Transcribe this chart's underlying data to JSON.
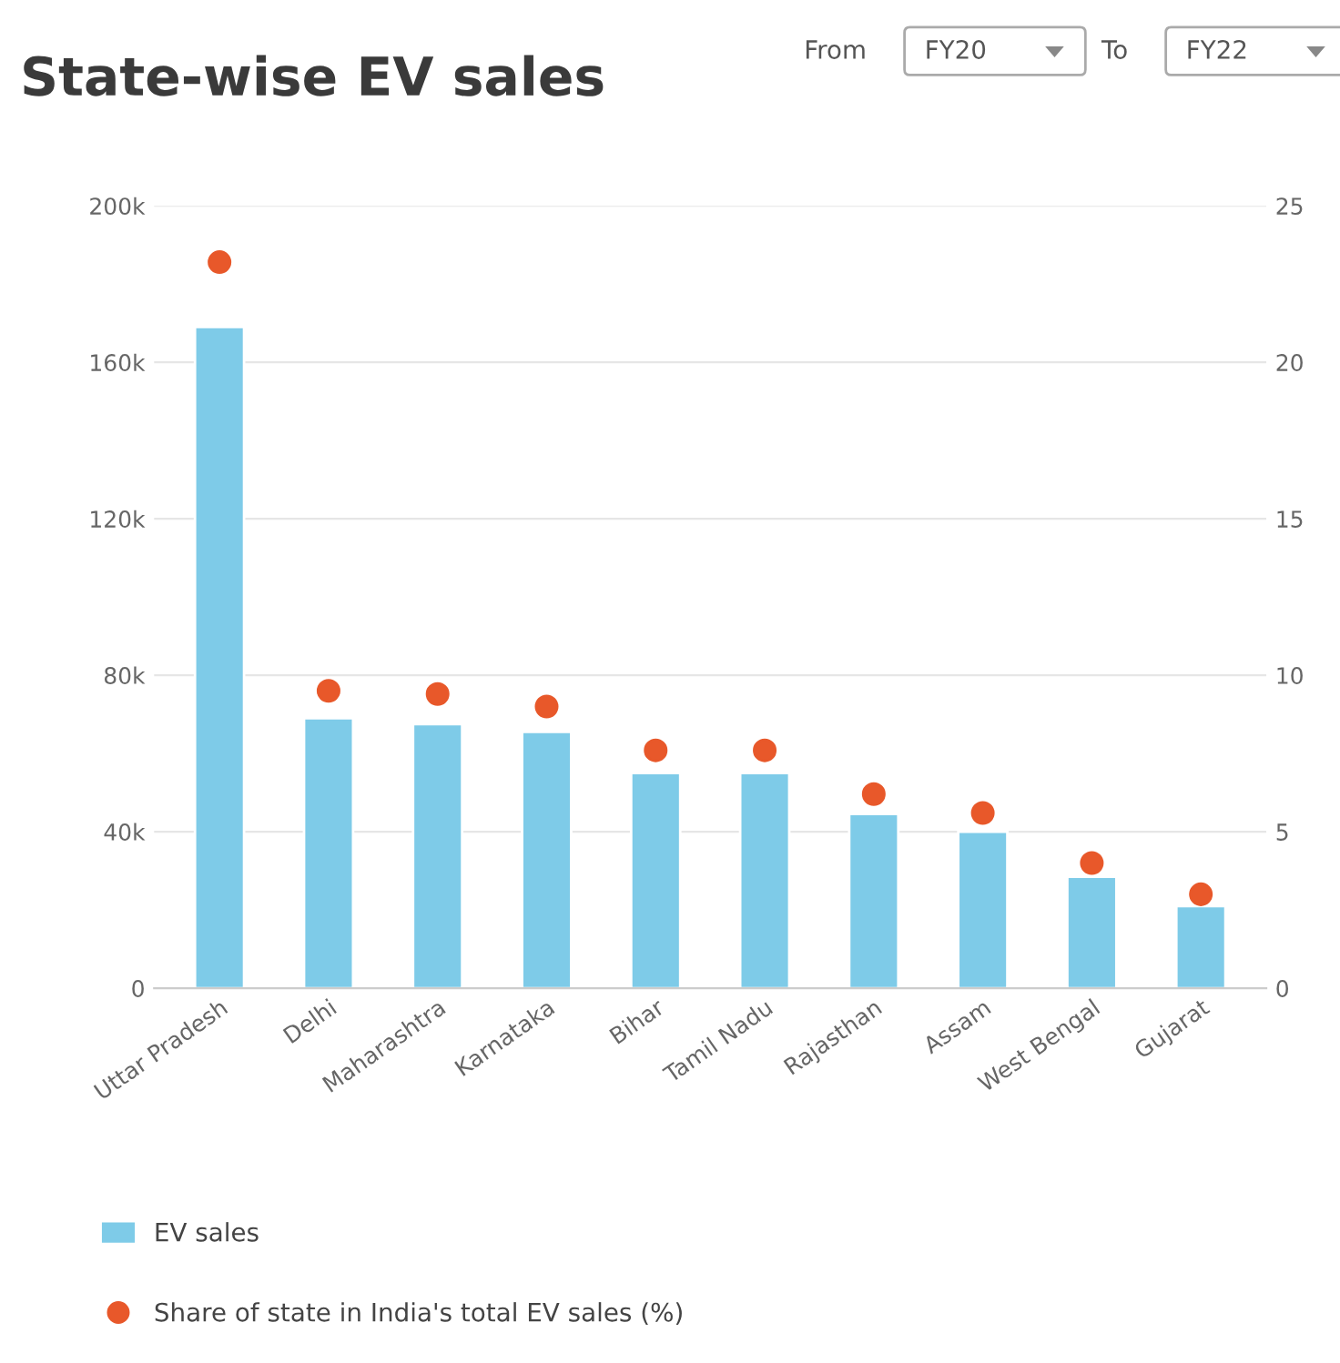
{
  "chart_data": {
    "type": "bar",
    "title": "State-wise EV sales",
    "annotations": [
      "From",
      "FY20",
      "To",
      "FY22"
    ],
    "categories": [
      "Uttar Pradesh",
      "Delhi",
      "Maharashtra",
      "Karnataka",
      "Bihar",
      "Tamil Nadu",
      "Rajasthan",
      "Assam",
      "West Bengal",
      "Gujarat"
    ],
    "series": [
      {
        "name": "EV sales",
        "color": "#7ecbe8",
        "values": [
          169000,
          69000,
          67500,
          65500,
          55000,
          55000,
          44500,
          40000,
          28500,
          21000
        ]
      },
      {
        "name": "Share of state in India's total EV sales (%)",
        "type": "scatter",
        "axis": "y2",
        "color": "#e8582a",
        "values": [
          23.2,
          9.5,
          9.4,
          9.0,
          7.6,
          7.6,
          6.2,
          5.6,
          4.0,
          3.0
        ]
      }
    ],
    "ylim": [
      0,
      200000
    ],
    "yticks": [
      0,
      {
        "value": 40000,
        "label": "40k"
      },
      {
        "value": 80000,
        "label": "80k"
      },
      {
        "value": 120000,
        "label": "120k"
      },
      {
        "value": 160000,
        "label": "160k"
      },
      {
        "value": 200000,
        "label": "200k"
      }
    ],
    "y2lim": [
      0,
      25
    ],
    "y2ticks": [
      0,
      5,
      10,
      15,
      20,
      25
    ],
    "grid": "y",
    "legend": "bottom",
    "marker": "circle"
  }
}
